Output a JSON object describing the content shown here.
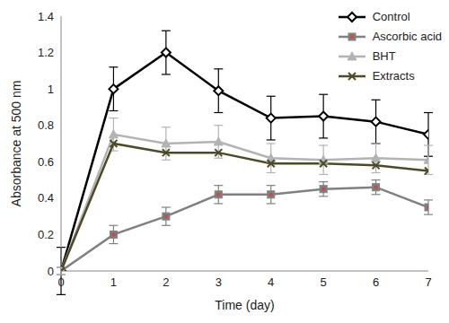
{
  "chart_data": {
    "type": "line",
    "x_label": "Time (day)",
    "y_label": "Absorbance at 500 nm",
    "x": [
      0,
      1,
      2,
      3,
      4,
      5,
      6,
      7
    ],
    "xlim": [
      0,
      7
    ],
    "xticks": [
      0,
      1,
      2,
      3,
      4,
      5,
      6,
      7
    ],
    "ylim": [
      0,
      1.4
    ],
    "yticks": [
      0,
      0.2,
      0.4,
      0.6,
      0.8,
      1,
      1.2,
      1.4
    ],
    "grid": false,
    "legend": "upper right",
    "series": [
      {
        "name": "Control",
        "color": "#000000",
        "marker": "diamond",
        "values": [
          0,
          1.0,
          1.2,
          0.99,
          0.84,
          0.85,
          0.82,
          0.75
        ],
        "errors": [
          0.13,
          0.12,
          0.12,
          0.12,
          0.12,
          0.12,
          0.12,
          0.12
        ]
      },
      {
        "name": "Ascorbic acid",
        "color": "#808080",
        "marker": "square",
        "values": [
          0,
          0.2,
          0.3,
          0.42,
          0.42,
          0.45,
          0.46,
          0.35
        ],
        "errors": [
          0.02,
          0.05,
          0.05,
          0.05,
          0.05,
          0.04,
          0.04,
          0.04
        ]
      },
      {
        "name": "BHT",
        "color": "#b3b3b3",
        "marker": "triangle",
        "values": [
          0,
          0.75,
          0.7,
          0.71,
          0.62,
          0.61,
          0.62,
          0.61
        ],
        "errors": [
          0.02,
          0.09,
          0.09,
          0.09,
          0.08,
          0.08,
          0.08,
          0.08
        ]
      },
      {
        "name": "Extracts",
        "color": "#4d4a2a",
        "marker": "x",
        "values": [
          0,
          0.7,
          0.65,
          0.65,
          0.59,
          0.59,
          0.58,
          0.55
        ]
      }
    ]
  }
}
